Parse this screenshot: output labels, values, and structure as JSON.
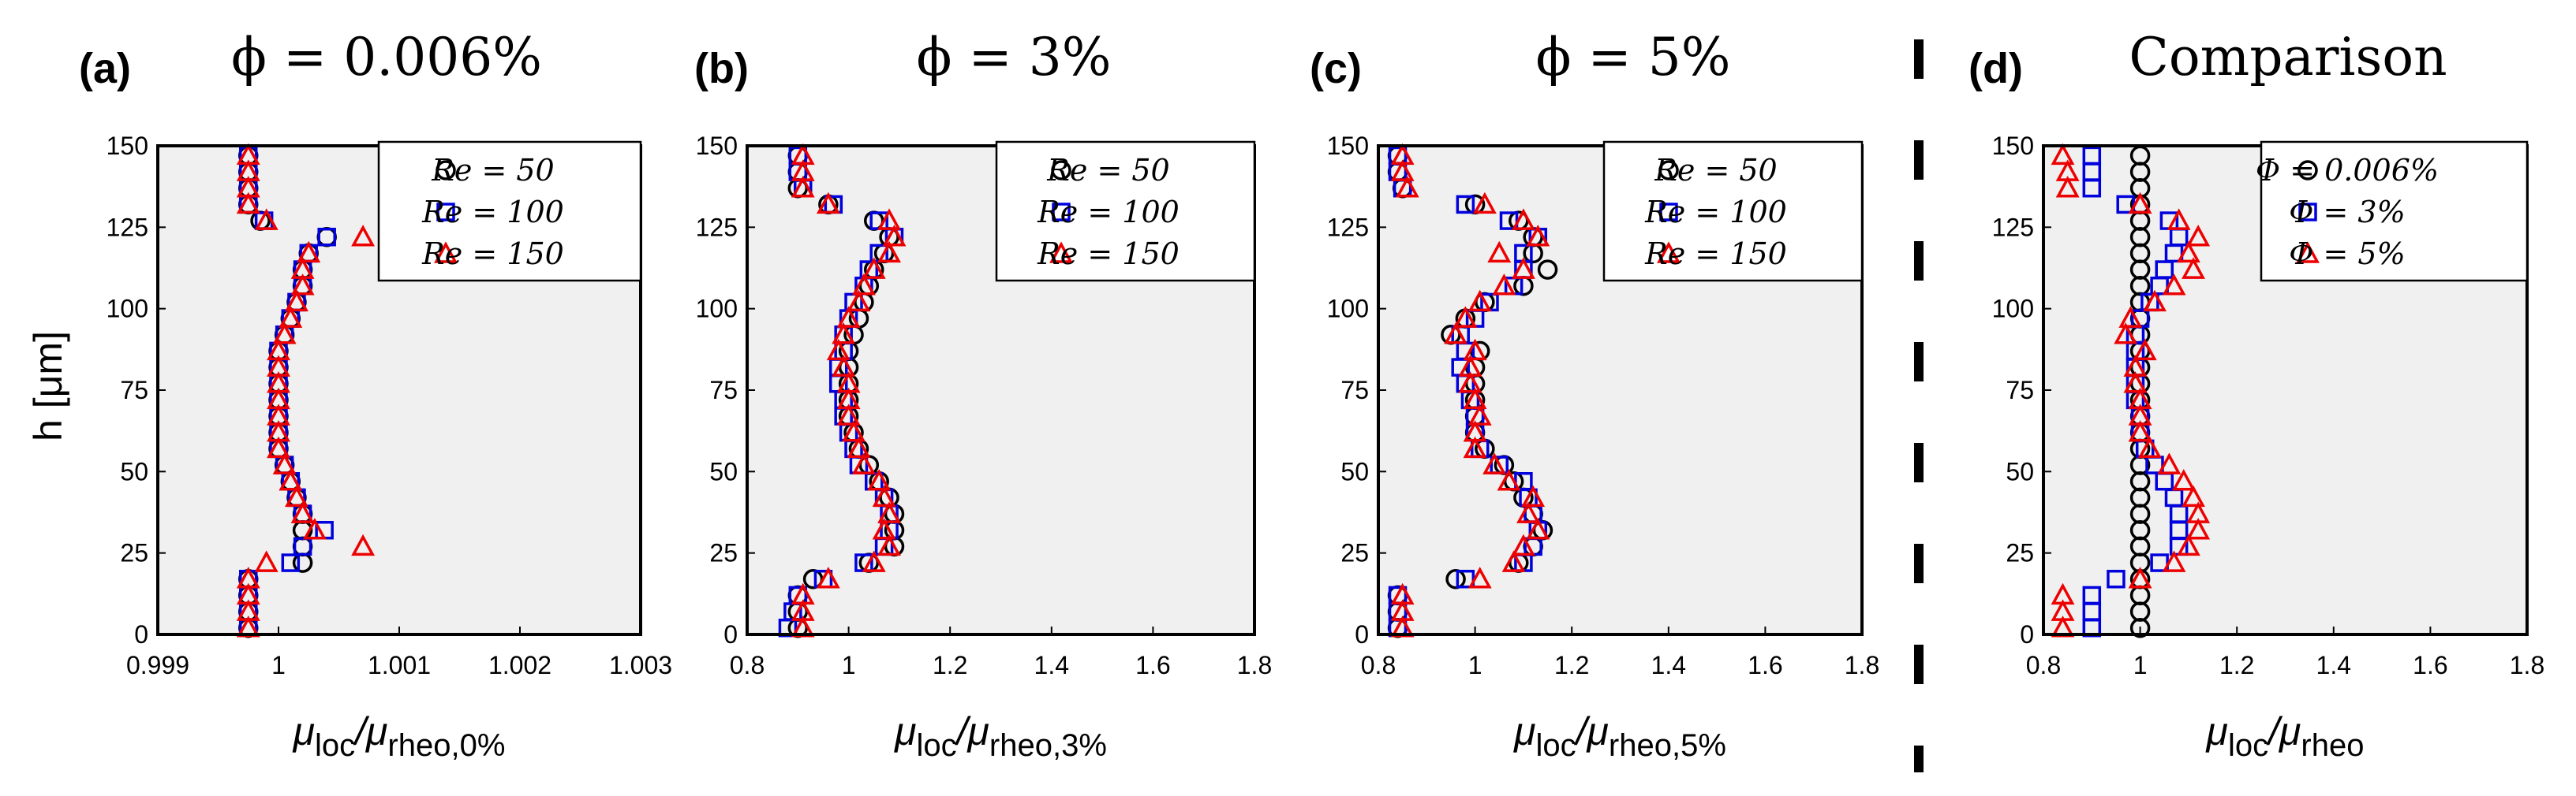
{
  "colors": {
    "background": "#f0f0f0",
    "series_1": "#000000",
    "series_2": "#0000dd",
    "series_3": "#ee0000"
  },
  "ylabel": "h [μm]",
  "chart_data": [
    {
      "type": "scatter",
      "panel": "(a)",
      "title": "ϕ = 0.006%",
      "xlabel_main": "μ",
      "xlabel_sub1": "loc",
      "xlabel_mid": "/μ",
      "xlabel_sub2": "rheo,0%",
      "xlim": [
        0.999,
        1.003
      ],
      "xticks": [
        0.999,
        1,
        1.001,
        1.002,
        1.003
      ],
      "xtick_labels": [
        "0.999",
        "1",
        "1.001",
        "1.002",
        "1.003"
      ],
      "ylim": [
        0,
        150
      ],
      "yticks": [
        0,
        25,
        50,
        75,
        100,
        125,
        150
      ],
      "ytick_labels": [
        "0",
        "25",
        "50",
        "75",
        "100",
        "125",
        "150"
      ],
      "legend": [
        "Re = 50",
        "Re = 100",
        "Re = 150"
      ],
      "y": [
        147,
        142,
        137,
        132,
        127,
        122,
        117,
        112,
        107,
        102,
        97,
        92,
        87,
        82,
        77,
        72,
        67,
        62,
        57,
        52,
        47,
        42,
        37,
        32,
        27,
        22,
        17,
        12,
        7,
        2
      ],
      "series": [
        {
          "name": "Re = 50",
          "marker": "circle",
          "values": [
            0.99975,
            0.99975,
            0.99975,
            0.99975,
            0.99985,
            1.0004,
            1.00025,
            1.0002,
            1.0002,
            1.00015,
            1.0001,
            1.00005,
            1.0,
            1.0,
            1.0,
            1.0,
            1.0,
            1.0,
            1.0,
            1.00005,
            1.0001,
            1.00015,
            1.0002,
            1.0002,
            1.0002,
            1.0002,
            0.99975,
            0.99975,
            0.99975,
            0.99975
          ]
        },
        {
          "name": "Re = 100",
          "marker": "square",
          "values": [
            0.99975,
            0.99975,
            0.99975,
            0.99975,
            0.99988,
            1.0004,
            1.00025,
            1.0002,
            1.0002,
            1.00015,
            1.0001,
            1.00005,
            1.0,
            1.0,
            1.0,
            1.0,
            1.0,
            1.0,
            1.0,
            1.00005,
            1.0001,
            1.00015,
            1.0002,
            1.00038,
            1.0002,
            1.0001,
            0.99975,
            0.99975,
            0.99975,
            0.99975
          ]
        },
        {
          "name": "Re = 150",
          "marker": "triangle",
          "values": [
            0.99975,
            0.99975,
            0.99975,
            0.99975,
            0.9999,
            1.0007,
            1.00025,
            1.0002,
            1.0002,
            1.00015,
            1.0001,
            1.00005,
            1.0,
            1.0,
            1.0,
            1.0,
            1.0,
            1.0,
            1.0,
            1.00005,
            1.0001,
            1.00015,
            1.0002,
            1.0003,
            1.0007,
            0.9999,
            0.99975,
            0.99975,
            0.99975,
            0.99975
          ]
        }
      ]
    },
    {
      "type": "scatter",
      "panel": "(b)",
      "title": "ϕ = 3%",
      "xlabel_main": "μ",
      "xlabel_sub1": "loc",
      "xlabel_mid": "/μ",
      "xlabel_sub2": "rheo,3%",
      "xlim": [
        0.8,
        1.8
      ],
      "xticks": [
        0.8,
        1,
        1.2,
        1.4,
        1.6,
        1.8
      ],
      "xtick_labels": [
        "0.8",
        "1",
        "1.2",
        "1.4",
        "1.6",
        "1.8"
      ],
      "ylim": [
        0,
        150
      ],
      "yticks": [
        0,
        25,
        50,
        75,
        100,
        125,
        150
      ],
      "ytick_labels": [
        "0",
        "25",
        "50",
        "75",
        "100",
        "125",
        "150"
      ],
      "legend": [
        "Re = 50",
        "Re = 100",
        "Re = 150"
      ],
      "y": [
        147,
        142,
        137,
        132,
        127,
        122,
        117,
        112,
        107,
        102,
        97,
        92,
        87,
        82,
        77,
        72,
        67,
        62,
        57,
        52,
        47,
        42,
        37,
        32,
        27,
        22,
        17,
        12,
        7,
        2
      ],
      "series": [
        {
          "name": "Re = 50",
          "marker": "circle",
          "values": [
            0.9,
            0.9,
            0.9,
            0.96,
            1.05,
            1.08,
            1.07,
            1.05,
            1.04,
            1.03,
            1.02,
            1.01,
            1.0,
            1.0,
            1.0,
            1.0,
            1.0,
            1.01,
            1.02,
            1.04,
            1.06,
            1.08,
            1.09,
            1.09,
            1.09,
            1.04,
            0.93,
            0.9,
            0.9,
            0.9
          ]
        },
        {
          "name": "Re = 100",
          "marker": "square",
          "values": [
            0.9,
            0.9,
            0.91,
            0.97,
            1.06,
            1.09,
            1.06,
            1.04,
            1.03,
            1.01,
            1.0,
            0.99,
            0.99,
            0.98,
            0.98,
            0.99,
            0.99,
            1.0,
            1.01,
            1.02,
            1.05,
            1.07,
            1.08,
            1.08,
            1.07,
            1.03,
            0.95,
            0.9,
            0.89,
            0.88
          ]
        },
        {
          "name": "Re = 150",
          "marker": "triangle",
          "values": [
            0.91,
            0.91,
            0.91,
            0.96,
            1.08,
            1.09,
            1.08,
            1.05,
            1.03,
            1.02,
            1.0,
            0.99,
            0.98,
            0.99,
            1.0,
            1.0,
            1.0,
            1.01,
            1.02,
            1.03,
            1.06,
            1.07,
            1.08,
            1.07,
            1.08,
            1.05,
            0.96,
            0.91,
            0.91,
            0.91
          ]
        }
      ]
    },
    {
      "type": "scatter",
      "panel": "(c)",
      "title": "ϕ = 5%",
      "xlabel_main": "μ",
      "xlabel_sub1": "loc",
      "xlabel_mid": "/μ",
      "xlabel_sub2": "rheo,5%",
      "xlim": [
        0.8,
        1.8
      ],
      "xticks": [
        0.8,
        1,
        1.2,
        1.4,
        1.6,
        1.8
      ],
      "xtick_labels": [
        "0.8",
        "1",
        "1.2",
        "1.4",
        "1.6",
        "1.8"
      ],
      "ylim": [
        0,
        150
      ],
      "yticks": [
        0,
        25,
        50,
        75,
        100,
        125,
        150
      ],
      "ytick_labels": [
        "0",
        "25",
        "50",
        "75",
        "100",
        "125",
        "150"
      ],
      "legend": [
        "Re = 50",
        "Re = 100",
        "Re = 150"
      ],
      "y": [
        147,
        142,
        137,
        132,
        127,
        122,
        117,
        112,
        107,
        102,
        97,
        92,
        87,
        82,
        77,
        72,
        67,
        62,
        57,
        52,
        47,
        42,
        37,
        32,
        27,
        22,
        17,
        12,
        7,
        2
      ],
      "series": [
        {
          "name": "Re = 50",
          "marker": "circle",
          "values": [
            0.84,
            0.84,
            0.85,
            1.0,
            1.09,
            1.12,
            1.12,
            1.15,
            1.1,
            1.02,
            0.98,
            0.95,
            1.01,
            1.0,
            1.0,
            1.0,
            1.0,
            1.0,
            1.02,
            1.06,
            1.08,
            1.1,
            1.12,
            1.14,
            1.12,
            1.09,
            0.96,
            0.84,
            0.84,
            0.84
          ]
        },
        {
          "name": "Re = 100",
          "marker": "square",
          "values": [
            0.84,
            0.84,
            0.85,
            0.98,
            1.07,
            1.13,
            1.1,
            1.1,
            1.08,
            1.03,
            1.0,
            0.97,
            0.98,
            0.97,
            0.98,
            0.99,
            1.0,
            1.0,
            1.01,
            1.05,
            1.1,
            1.11,
            1.12,
            1.13,
            1.12,
            1.1,
            0.98,
            0.84,
            0.84,
            0.84
          ]
        },
        {
          "name": "Re = 150",
          "marker": "triangle",
          "values": [
            0.85,
            0.85,
            0.86,
            1.02,
            1.1,
            1.13,
            1.05,
            1.1,
            1.06,
            1.01,
            0.98,
            0.96,
            1.0,
            0.99,
            0.99,
            1.0,
            1.01,
            1.0,
            1.0,
            1.04,
            1.07,
            1.12,
            1.11,
            1.13,
            1.1,
            1.08,
            1.01,
            0.85,
            0.85,
            0.85
          ]
        }
      ]
    },
    {
      "type": "scatter",
      "panel": "(d)",
      "title": "Comparison",
      "xlabel_main": "μ",
      "xlabel_sub1": "loc",
      "xlabel_mid": "/μ",
      "xlabel_sub2": "rheo",
      "xlim": [
        0.8,
        1.8
      ],
      "xticks": [
        0.8,
        1,
        1.2,
        1.4,
        1.6,
        1.8
      ],
      "xtick_labels": [
        "0.8",
        "1",
        "1.2",
        "1.4",
        "1.6",
        "1.8"
      ],
      "ylim": [
        0,
        150
      ],
      "yticks": [
        0,
        25,
        50,
        75,
        100,
        125,
        150
      ],
      "ytick_labels": [
        "0",
        "25",
        "50",
        "75",
        "100",
        "125",
        "150"
      ],
      "legend": [
        "Φ = 0.006%",
        "Φ = 3%",
        "Φ = 5%"
      ],
      "y": [
        147,
        142,
        137,
        132,
        127,
        122,
        117,
        112,
        107,
        102,
        97,
        92,
        87,
        82,
        77,
        72,
        67,
        62,
        57,
        52,
        47,
        42,
        37,
        32,
        27,
        22,
        17,
        12,
        7,
        2
      ],
      "series": [
        {
          "name": "Φ = 0.006%",
          "marker": "circle",
          "values": [
            1.0,
            1.0,
            1.0,
            1.0,
            1.0,
            1.0,
            1.0,
            1.0,
            1.0,
            1.0,
            1.0,
            1.0,
            1.0,
            1.0,
            1.0,
            1.0,
            1.0,
            1.0,
            1.0,
            1.0,
            1.0,
            1.0,
            1.0,
            1.0,
            1.0,
            1.0,
            1.0,
            1.0,
            1.0,
            1.0
          ]
        },
        {
          "name": "Φ = 3%",
          "marker": "square",
          "values": [
            0.9,
            0.9,
            0.9,
            0.97,
            1.06,
            1.08,
            1.07,
            1.05,
            1.04,
            1.02,
            1.0,
            0.99,
            0.99,
            0.99,
            0.99,
            0.99,
            1.0,
            1.0,
            1.01,
            1.03,
            1.05,
            1.07,
            1.08,
            1.08,
            1.08,
            1.04,
            0.95,
            0.9,
            0.9,
            0.9
          ]
        },
        {
          "name": "Φ = 5%",
          "marker": "triangle",
          "values": [
            0.84,
            0.85,
            0.85,
            1.0,
            1.08,
            1.12,
            1.1,
            1.11,
            1.07,
            1.03,
            0.98,
            0.97,
            1.01,
            0.99,
            0.99,
            1.0,
            1.0,
            1.0,
            1.02,
            1.06,
            1.09,
            1.11,
            1.12,
            1.12,
            1.1,
            1.07,
            1.0,
            0.84,
            0.84,
            0.84
          ]
        }
      ]
    }
  ]
}
